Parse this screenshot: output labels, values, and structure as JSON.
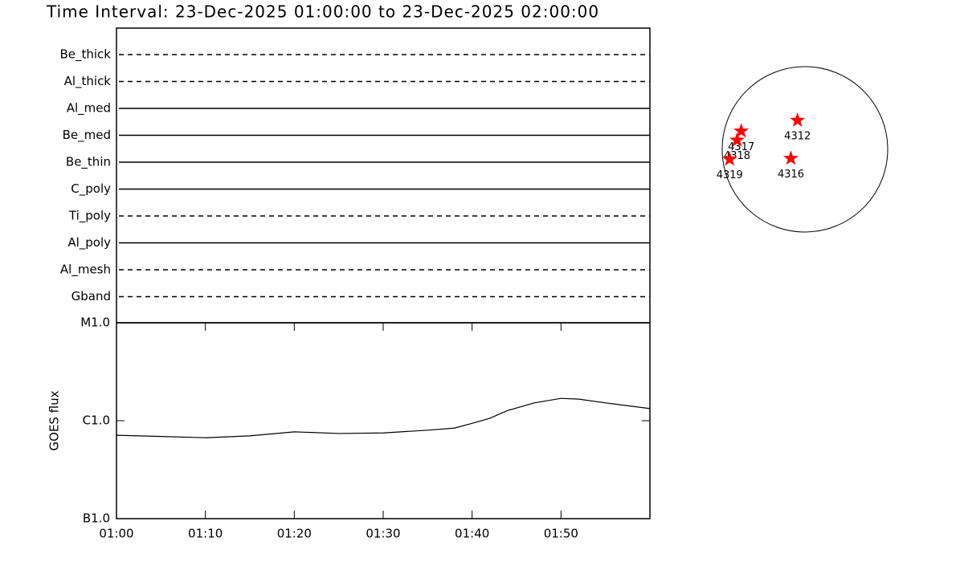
{
  "chart_data": [
    {
      "type": "timeline",
      "title": "Time Interval: 23-Dec-2025 01:00:00 to 23-Dec-2025 02:00:00",
      "categories": [
        "Be_thick",
        "Al_thick",
        "Al_med",
        "Be_med",
        "Be_thin",
        "C_poly",
        "Ti_poly",
        "Al_poly",
        "Al_mesh",
        "Gband"
      ],
      "styles": [
        "dashed",
        "dashed",
        "solid",
        "solid",
        "solid",
        "solid",
        "dashed",
        "solid",
        "dashed",
        "dashed"
      ],
      "color": "#000000",
      "xlim": [
        "01:00",
        "02:00"
      ]
    },
    {
      "type": "line",
      "ylabel": "GOES flux",
      "log_scale": true,
      "color": "#000000",
      "xlim": [
        "01:00",
        "02:00"
      ],
      "xticks": [
        "01:00",
        "01:10",
        "01:20",
        "01:30",
        "01:40",
        "01:50"
      ],
      "ylim": [
        1e-07,
        1e-05
      ],
      "yticks": [
        {
          "value": 1e-07,
          "label": "B1.0"
        },
        {
          "value": 1e-06,
          "label": "C1.0"
        },
        {
          "value": 1e-05,
          "label": "M1.0"
        }
      ],
      "x": [
        "01:00",
        "01:05",
        "01:10",
        "01:15",
        "01:20",
        "01:25",
        "01:30",
        "01:35",
        "01:38",
        "01:40",
        "01:42",
        "01:44",
        "01:47",
        "01:50",
        "01:52",
        "01:55",
        "02:00"
      ],
      "values": [
        7.1e-07,
        6.9e-07,
        6.7e-07,
        7e-07,
        7.7e-07,
        7.4e-07,
        7.5e-07,
        8e-07,
        8.4e-07,
        9.4e-07,
        1.06e-06,
        1.27e-06,
        1.52e-06,
        1.69e-06,
        1.66e-06,
        1.52e-06,
        1.33e-06
      ]
    },
    {
      "type": "disk",
      "color": "#ff0000",
      "xlim": [
        -1,
        1
      ],
      "ylim": [
        -1,
        1
      ],
      "labels": [
        "4312",
        "4317",
        "4318",
        "4319",
        "4316"
      ],
      "x": [
        -0.09,
        -0.77,
        -0.82,
        -0.91,
        -0.17
      ],
      "y": [
        0.35,
        0.22,
        0.11,
        -0.12,
        -0.11
      ]
    }
  ]
}
